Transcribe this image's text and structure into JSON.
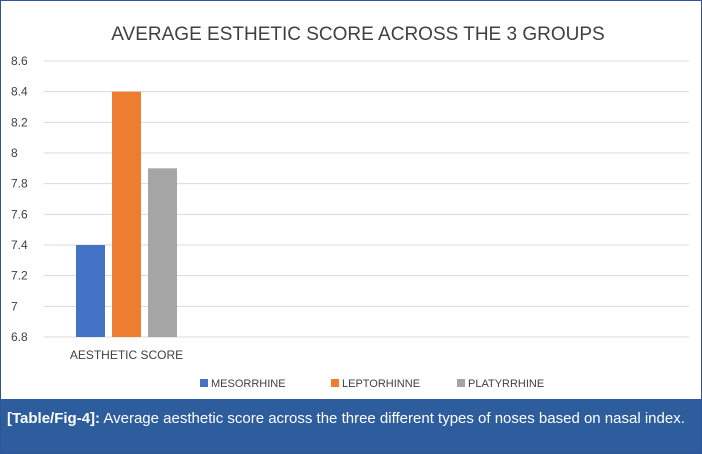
{
  "chart_data": {
    "type": "bar",
    "title": "AVERAGE ESTHETIC SCORE ACROSS THE 3 GROUPS",
    "categories": [
      "AESTHETIC SCORE"
    ],
    "series": [
      {
        "name": "MESORRHINE",
        "values": [
          7.4
        ],
        "color": "#4472c4"
      },
      {
        "name": "LEPTORHINNE",
        "values": [
          8.4
        ],
        "color": "#ed7d31"
      },
      {
        "name": "PLATYRRHINE",
        "values": [
          7.9
        ],
        "color": "#a5a5a5"
      }
    ],
    "ylim": [
      6.8,
      8.6
    ],
    "yticks": [
      "6.8",
      "7",
      "7.2",
      "7.4",
      "7.6",
      "7.8",
      "8",
      "8.2",
      "8.4",
      "8.6"
    ],
    "grid": true,
    "legend": "bottom"
  },
  "caption": {
    "label": "[Table/Fig-4]:",
    "text": " Average aesthetic score across the three different types of noses based on nasal index."
  }
}
